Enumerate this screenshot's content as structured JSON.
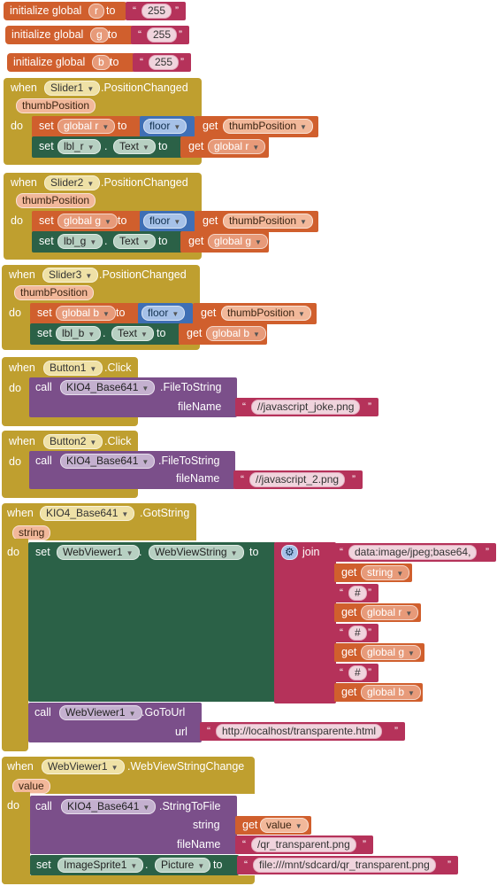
{
  "kw": {
    "init": "initialize global",
    "to": "to",
    "when": "when",
    "do": "do",
    "set": "set",
    "call": "call",
    "get": "get",
    "dot": ".",
    "quote_open": "“",
    "quote_close": "”"
  },
  "inits": [
    {
      "var": "r",
      "value": "255"
    },
    {
      "var": "g",
      "value": "255"
    },
    {
      "var": "b",
      "value": "255"
    }
  ],
  "sliders": [
    {
      "component": "Slider1",
      "event": ".PositionChanged",
      "param": "thumbPosition",
      "global_var": "global r",
      "math": "floor",
      "get_param": "thumbPosition",
      "label": "lbl_r",
      "prop": "Text",
      "get_global": "global r"
    },
    {
      "component": "Slider2",
      "event": ".PositionChanged",
      "param": "thumbPosition",
      "global_var": "global g",
      "math": "floor",
      "get_param": "thumbPosition",
      "label": "lbl_g",
      "prop": "Text",
      "get_global": "global g"
    },
    {
      "component": "Slider3",
      "event": ".PositionChanged",
      "param": "thumbPosition",
      "global_var": "global b",
      "math": "floor",
      "get_param": "thumbPosition",
      "label": "lbl_b",
      "prop": "Text",
      "get_global": "global b"
    }
  ],
  "buttons": [
    {
      "component": "Button1",
      "event": ".Click",
      "target": "KIO4_Base641",
      "method": ".FileToString",
      "arg": "fileName",
      "value": "//javascript_joke.png"
    },
    {
      "component": "Button2",
      "event": ".Click",
      "target": "KIO4_Base641",
      "method": ".FileToString",
      "arg": "fileName",
      "value": "//javascript_2.png"
    }
  ],
  "gotstring": {
    "component": "KIO4_Base641",
    "event": ".GotString",
    "param": "string",
    "set_target": "WebViewer1",
    "set_prop": "WebViewString",
    "join": "join",
    "join_items": [
      "data:image/jpeg;base64,",
      "string",
      "#",
      "global r",
      "#",
      "global g",
      "#",
      "global b"
    ],
    "call_target": "WebViewer1",
    "call_method": ".GoToUrl",
    "call_arg": "url",
    "call_value": "http://localhost/transparente.html"
  },
  "webview": {
    "component": "WebViewer1",
    "event": ".WebViewStringChange",
    "param": "value",
    "call_target": "KIO4_Base641",
    "call_method": ".StringToFile",
    "arg1": "string",
    "arg1_get": "value",
    "arg2": "fileName",
    "arg2_value": "/qr_transparent.png",
    "set_target": "ImageSprite1",
    "set_prop": "Picture",
    "set_value": "file:///mnt/sdcard/qr_transparent.png"
  },
  "colors": {
    "event": "#bf9f2f",
    "variable": "#d05f2d",
    "procedure": "#7b4f8a",
    "component": "#2b6147",
    "text": "#b5325a",
    "math": "#3f6fb5"
  },
  "icons": {
    "dropdown": "triangle-down",
    "mutator": "gear"
  }
}
